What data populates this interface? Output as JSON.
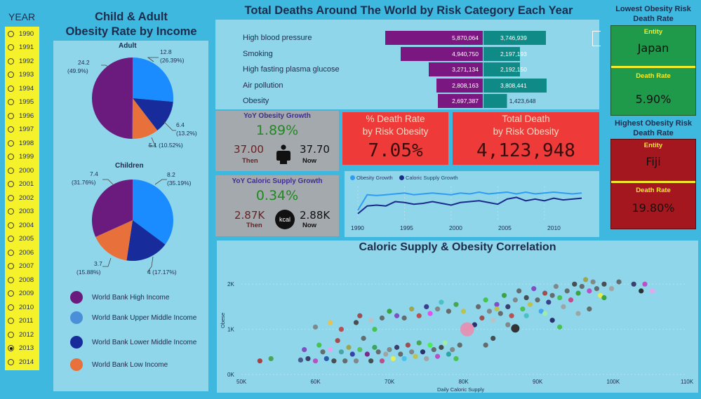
{
  "slicer": {
    "title": "YEAR",
    "years": [
      "1990",
      "1991",
      "1992",
      "1993",
      "1994",
      "1995",
      "1996",
      "1997",
      "1998",
      "1999",
      "2000",
      "2001",
      "2002",
      "2003",
      "2004",
      "2005",
      "2006",
      "2007",
      "2008",
      "2009",
      "2010",
      "2011",
      "2012",
      "2013",
      "2014"
    ],
    "selected": "2013"
  },
  "pies": {
    "title_line1": "Child & Adult",
    "title_line2": "Obesity Rate by Income",
    "adult": {
      "heading": "Adult",
      "labels": [
        "12.8",
        "(26.39%)",
        "6.4",
        "(13.2%)",
        "5.1 (10.52%)",
        "24.2",
        "(49.9%)"
      ]
    },
    "children": {
      "heading": "Children",
      "labels": [
        "8.2",
        "(35.19%)",
        "4 (17.17%)",
        "3.7",
        "(15.88%)",
        "7.4",
        "(31.76%)"
      ]
    },
    "legend": [
      "World Bank High Income",
      "World Bank Upper Middle Income",
      "World Bank Lower Middle Income",
      "World Bank Low Income"
    ],
    "colors": {
      "high": "#6a1b7d",
      "upper_middle": "#1a8cff",
      "lower_middle": "#182b9a",
      "low": "#e8703a"
    }
  },
  "bars": {
    "title": "Total Deaths Around The World by Risk Category Each Year",
    "rows": [
      {
        "category": "High blood pressure",
        "purple": "5,870,064",
        "teal": "3,746,939"
      },
      {
        "category": "Smoking",
        "purple": "4,940,750",
        "teal": "2,197,193"
      },
      {
        "category": "High fasting plasma glucose",
        "purple": "3,271,134",
        "teal": "2,192,150"
      },
      {
        "category": "Air pollution",
        "purple": "2,808,163",
        "teal": "3,808,441"
      },
      {
        "category": "Obesity",
        "purple": "2,697,387",
        "teal": "1,423,648"
      }
    ]
  },
  "obesity_growth": {
    "title": "YoY Obesity Growth",
    "value": "1.89%",
    "then": "37.00",
    "then_label": "Then",
    "now": "37.70",
    "now_label": "Now"
  },
  "caloric_growth": {
    "title": "YoY Caloric Supply Growth",
    "value": "0.34%",
    "then": "2.87K",
    "then_label": "Then",
    "now": "2.88K",
    "now_label": "Now",
    "icon_text": "kcal"
  },
  "death_rate_card": {
    "line1": "% Death Rate",
    "line2": "by Risk Obesity",
    "value": "7.05%"
  },
  "total_death_card": {
    "line1": "Total Death",
    "line2": "by Risk Obesity",
    "value": "4,123,948"
  },
  "line_chart": {
    "legend": [
      "Obesity Growth",
      "Caloric Supply Growth"
    ],
    "x_ticks": [
      "1990",
      "1995",
      "2000",
      "2005",
      "2010"
    ]
  },
  "lowest": {
    "heading_line1": "Lowest Obesity Risk",
    "heading_line2": "Death Rate",
    "entity_label": "Entity",
    "entity": "Japan",
    "rate_label": "Death Rate",
    "rate": "5.90%"
  },
  "highest": {
    "heading_line1": "Highest Obesity Risk",
    "heading_line2": "Death Rate",
    "entity_label": "Entity",
    "entity": "Fiji",
    "rate_label": "Death Rate",
    "rate": "19.80%"
  },
  "scatter": {
    "title": "Caloric Supply & Obesity Correlation",
    "x_label": "Daily Caloric Supply",
    "y_label": "Obese",
    "x_ticks": [
      "50K",
      "60K",
      "70K",
      "80K",
      "90K",
      "100K",
      "110K"
    ],
    "y_ticks": [
      "0K",
      "1K",
      "2K"
    ]
  },
  "chart_data": [
    {
      "type": "pie",
      "title": "Adult",
      "categories": [
        "World Bank High Income",
        "World Bank Upper Middle Income",
        "World Bank Lower Middle Income",
        "World Bank Low Income"
      ],
      "values": [
        24.2,
        12.8,
        6.4,
        5.1
      ],
      "percents": [
        49.9,
        26.39,
        13.2,
        10.52
      ]
    },
    {
      "type": "pie",
      "title": "Children",
      "categories": [
        "World Bank High Income",
        "World Bank Upper Middle Income",
        "World Bank Lower Middle Income",
        "World Bank Low Income"
      ],
      "values": [
        7.4,
        8.2,
        4,
        3.7
      ],
      "percents": [
        31.76,
        35.19,
        17.17,
        15.88
      ]
    },
    {
      "type": "bar",
      "title": "Total Deaths Around The World by Risk Category Each Year",
      "categories": [
        "High blood pressure",
        "Smoking",
        "High fasting plasma glucose",
        "Air pollution",
        "Obesity"
      ],
      "series": [
        {
          "name": "purple",
          "values": [
            5870064,
            4940750,
            3271134,
            2808163,
            2697387
          ]
        },
        {
          "name": "teal",
          "values": [
            3746939,
            2197193,
            2192150,
            3808441,
            1423648
          ]
        }
      ]
    },
    {
      "type": "line",
      "title": "",
      "x": [
        1990,
        1991,
        1992,
        1993,
        1994,
        1995,
        1996,
        1997,
        1998,
        1999,
        2000,
        2001,
        2002,
        2003,
        2004,
        2005,
        2006,
        2007,
        2008,
        2009,
        2010,
        2011,
        2012,
        2013,
        2014
      ],
      "series": [
        {
          "name": "Obesity Growth",
          "values": [
            0.5,
            2.3,
            2.2,
            2.3,
            2.4,
            2.5,
            2.3,
            2.4,
            2.5,
            2.4,
            2.3,
            2.5,
            2.4,
            2.6,
            2.4,
            2.5,
            2.6,
            2.4,
            2.6,
            2.4,
            2.5,
            2.6,
            2.5,
            2.4,
            2.5
          ]
        },
        {
          "name": "Caloric Supply Growth",
          "values": [
            0.1,
            1.0,
            1.1,
            1.0,
            1.5,
            1.4,
            1.2,
            1.3,
            1.5,
            1.3,
            1.1,
            1.4,
            1.5,
            1.6,
            1.4,
            1.2,
            1.8,
            2.0,
            1.6,
            1.8,
            1.6,
            1.9,
            1.7,
            1.8,
            1.9
          ]
        }
      ],
      "x_ticks": [
        1990,
        1995,
        2000,
        2005,
        2010
      ]
    },
    {
      "type": "scatter",
      "title": "Caloric Supply & Obesity Correlation",
      "xlabel": "Daily Caloric Supply",
      "ylabel": "Obese",
      "xlim": [
        50000,
        110000
      ],
      "ylim": [
        0,
        2500
      ],
      "points": [
        [
          52500,
          300,
          "#b03030"
        ],
        [
          54000,
          350,
          "#40a040"
        ],
        [
          58000,
          320,
          "#405080"
        ],
        [
          58500,
          550,
          "#8040c0"
        ],
        [
          59000,
          350,
          "#303060"
        ],
        [
          60000,
          300,
          "#c040c0"
        ],
        [
          60500,
          650,
          "#40c040"
        ],
        [
          61000,
          500,
          "#606060"
        ],
        [
          61500,
          350,
          "#2050a0"
        ],
        [
          62000,
          550,
          "#f0a0f0"
        ],
        [
          62500,
          300,
          "#404040"
        ],
        [
          63000,
          750,
          "#a04040"
        ],
        [
          63500,
          500,
          "#40a0a0"
        ],
        [
          64000,
          300,
          "#606060"
        ],
        [
          64500,
          600,
          "#a0a040"
        ],
        [
          65000,
          450,
          "#3030a0"
        ],
        [
          65500,
          300,
          "#808080"
        ],
        [
          66000,
          550,
          "#50c050"
        ],
        [
          66500,
          800,
          "#606060"
        ],
        [
          67000,
          450,
          "#7a1780"
        ],
        [
          67500,
          300,
          "#404040"
        ],
        [
          68000,
          600,
          "#30a050"
        ],
        [
          68500,
          500,
          "#606060"
        ],
        [
          69000,
          300,
          "#c04080"
        ],
        [
          69500,
          450,
          "#a0a0a0"
        ],
        [
          70000,
          550,
          "#808080"
        ],
        [
          70500,
          350,
          "#f0f040"
        ],
        [
          71000,
          600,
          "#303060"
        ],
        [
          71500,
          450,
          "#606060"
        ],
        [
          72000,
          350,
          "#40c0f0"
        ],
        [
          72500,
          650,
          "#a04040"
        ],
        [
          73000,
          500,
          "#808080"
        ],
        [
          73500,
          400,
          "#c0c040"
        ],
        [
          74000,
          700,
          "#40a040"
        ],
        [
          74500,
          500,
          "#202060"
        ],
        [
          75000,
          350,
          "#a0a0a0"
        ],
        [
          75500,
          650,
          "#40f040"
        ],
        [
          76000,
          550,
          "#606060"
        ],
        [
          76500,
          400,
          "#c040c0"
        ],
        [
          77000,
          600,
          "#404040"
        ],
        [
          77500,
          700,
          "#a0f0a0"
        ],
        [
          78000,
          450,
          "#20a0a0"
        ],
        [
          78500,
          550,
          "#808080"
        ],
        [
          79000,
          350,
          "#40c040"
        ],
        [
          79500,
          650,
          "#606060"
        ],
        [
          60000,
          1050,
          "#808080"
        ],
        [
          62000,
          1150,
          "#f0c040"
        ],
        [
          63500,
          1000,
          "#c04040"
        ],
        [
          65500,
          1150,
          "#404040"
        ],
        [
          66000,
          1300,
          "#a04040"
        ],
        [
          67500,
          1200,
          "#c0c0c0"
        ],
        [
          68000,
          1000,
          "#40c040"
        ],
        [
          69000,
          1250,
          "#606060"
        ],
        [
          70000,
          1400,
          "#30a030"
        ],
        [
          71000,
          1300,
          "#8040c0"
        ],
        [
          72000,
          1250,
          "#606060"
        ],
        [
          73000,
          1450,
          "#a0a040"
        ],
        [
          74000,
          1300,
          "#c04040"
        ],
        [
          75000,
          1500,
          "#303080"
        ],
        [
          75500,
          1350,
          "#f040f0"
        ],
        [
          76500,
          1450,
          "#808080"
        ],
        [
          77000,
          1600,
          "#40c0c0"
        ],
        [
          78000,
          1400,
          "#606060"
        ],
        [
          79000,
          1550,
          "#40a040"
        ],
        [
          80000,
          1400,
          "#c0c040"
        ],
        [
          80500,
          1000,
          "#f0a0c0"
        ],
        [
          81500,
          1100,
          "#202060"
        ],
        [
          82000,
          1500,
          "#606060"
        ],
        [
          82500,
          1250,
          "#a04040"
        ],
        [
          83000,
          1650,
          "#40c040"
        ],
        [
          83500,
          1400,
          "#808080"
        ],
        [
          84000,
          1200,
          "#c0c0c0"
        ],
        [
          84500,
          1550,
          "#8040c0"
        ],
        [
          85000,
          1350,
          "#606060"
        ],
        [
          85500,
          1750,
          "#30a030"
        ],
        [
          86000,
          1500,
          "#303060"
        ],
        [
          86500,
          1300,
          "#c04040"
        ],
        [
          87000,
          1650,
          "#808080"
        ],
        [
          87500,
          1850,
          "#606060"
        ],
        [
          88000,
          1450,
          "#40c040"
        ],
        [
          88500,
          1700,
          "#404040"
        ],
        [
          89000,
          1550,
          "#c0c040"
        ],
        [
          89500,
          1900,
          "#8040c0"
        ],
        [
          90000,
          1650,
          "#606060"
        ],
        [
          90500,
          1400,
          "#40a0f0"
        ],
        [
          91000,
          1800,
          "#a04040"
        ],
        [
          91500,
          1600,
          "#303080"
        ],
        [
          92000,
          1750,
          "#606060"
        ],
        [
          92500,
          1950,
          "#808080"
        ],
        [
          93000,
          1700,
          "#40c040"
        ],
        [
          93500,
          1500,
          "#a0a0a0"
        ],
        [
          94000,
          1850,
          "#606060"
        ],
        [
          94500,
          1650,
          "#c04080"
        ],
        [
          95000,
          2000,
          "#404040"
        ],
        [
          95500,
          1800,
          "#30a030"
        ],
        [
          96000,
          1950,
          "#606060"
        ],
        [
          96500,
          2100,
          "#a0a040"
        ],
        [
          97000,
          1850,
          "#c040c0"
        ],
        [
          97500,
          2050,
          "#808080"
        ],
        [
          98000,
          1900,
          "#606060"
        ],
        [
          98500,
          1750,
          "#f0f040"
        ],
        [
          99000,
          2000,
          "#404040"
        ],
        [
          100000,
          1900,
          "#a0a0a0"
        ],
        [
          101000,
          2050,
          "#606060"
        ],
        [
          103000,
          2000,
          "#303060"
        ],
        [
          104000,
          1850,
          "#202020"
        ],
        [
          104500,
          2000,
          "#c040c0"
        ],
        [
          105500,
          1850,
          "#f0a0f0"
        ],
        [
          93000,
          1050,
          "#40c040"
        ],
        [
          91000,
          1350,
          "#a0f0a0"
        ],
        [
          86000,
          1100,
          "#808080"
        ],
        [
          84000,
          800,
          "#404040"
        ],
        [
          84500,
          1450,
          "#c0c040"
        ],
        [
          83000,
          650,
          "#606060"
        ],
        [
          81000,
          1050,
          "#f0a0c0"
        ],
        [
          88500,
          1300,
          "#40c0c0"
        ],
        [
          92000,
          1200,
          "#202060"
        ],
        [
          95500,
          1350,
          "#a0a0a0"
        ],
        [
          97000,
          1450,
          "#606060"
        ],
        [
          99000,
          1700,
          "#30a030"
        ]
      ]
    }
  ]
}
